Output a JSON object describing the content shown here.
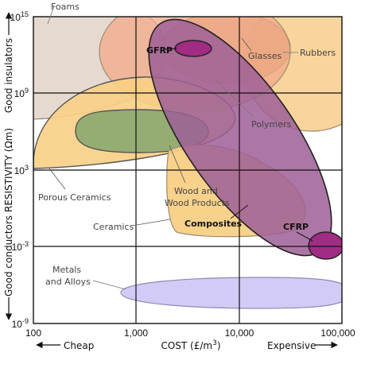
{
  "chart_data": {
    "type": "scatter",
    "title": "",
    "xlabel": "COST (£/m³)",
    "ylabel": "RESISTIVITY (Ωm)",
    "x_scale": "log",
    "y_scale": "log",
    "xlim": [
      100,
      100000
    ],
    "ylim": [
      1e-09,
      1000000000000000.0
    ],
    "x_ticks": [
      100,
      1000,
      10000,
      100000
    ],
    "x_tick_labels": [
      "100",
      "1,000",
      "10,000",
      "100,000"
    ],
    "y_ticks": [
      1e-09,
      0.001,
      1000.0,
      1000000000.0,
      1000000000000000.0
    ],
    "y_tick_labels": [
      "10-9",
      "10-3",
      "103",
      "109",
      "1015"
    ],
    "grid": true,
    "x_end_labels": {
      "left": "Cheap",
      "right": "Expensive"
    },
    "y_end_labels": {
      "top": "Good insulators",
      "bottom": "Good conductors"
    },
    "regions": [
      {
        "name": "Foams",
        "color": "#e2d3c8",
        "x_range": [
          100,
          1000
        ],
        "y_range": [
          10000000.0,
          1000000000000000.0
        ]
      },
      {
        "name": "Rubbers",
        "color": "#f6c77a",
        "x_range": [
          3000,
          100000
        ],
        "y_range": [
          1000000000.0,
          1000000000000000.0
        ]
      },
      {
        "name": "Glasses",
        "color": "#d59d6d",
        "x_range": [
          1500,
          20000
        ],
        "y_range": [
          1000000000.0,
          1000000000000000.0
        ]
      },
      {
        "name": "Polymers",
        "color": "#f4be76",
        "x_range": [
          800,
          30000
        ],
        "y_range": [
          100000.0,
          1000000000000000.0
        ]
      },
      {
        "name": "Porous Ceramics",
        "color": "#f8cf85",
        "x_range": [
          100,
          20000
        ],
        "y_range": [
          1000.0,
          1000000000.0
        ]
      },
      {
        "name": "Ceramics",
        "color": "#8aa86f",
        "x_range": [
          200,
          4000
        ],
        "y_range": [
          10000.0,
          10000000.0
        ]
      },
      {
        "name": "Wood and Wood Products",
        "color": "#f8cf85",
        "x_range": [
          1500,
          40000
        ],
        "y_range": [
          0.001,
          100000.0
        ]
      },
      {
        "name": "Composites",
        "color": "#9d5f96",
        "x_range": [
          1600,
          100000
        ],
        "y_range": [
          0.0001,
          1000000000000000.0
        ]
      },
      {
        "name": "GFRP",
        "color": "#a02c84",
        "x_range": [
          2300,
          5000
        ],
        "y_range": [
          100000000000.0,
          1000000000000.0
        ]
      },
      {
        "name": "CFRP",
        "color": "#a02c84",
        "x_range": [
          50000,
          100000
        ],
        "y_range": [
          0.0001,
          0.01
        ]
      },
      {
        "name": "Metals and Alloys",
        "color": "#cfc8f4",
        "x_range": [
          700,
          100000
        ],
        "y_range": [
          1e-08,
          1e-06
        ]
      }
    ],
    "labels": {
      "foams": "Foams",
      "rubbers": "Rubbers",
      "glasses": "Glasses",
      "polymers": "Polymers",
      "porous_ceramics": "Porous Ceramics",
      "ceramics": "Ceramics",
      "wood_line1": "Wood and",
      "wood_line2": "Wood Products",
      "composites": "Composites",
      "gfrp": "GFRP",
      "cfrp": "CFRP",
      "metals_line1": "Metals",
      "metals_line2": "and Alloys"
    }
  }
}
